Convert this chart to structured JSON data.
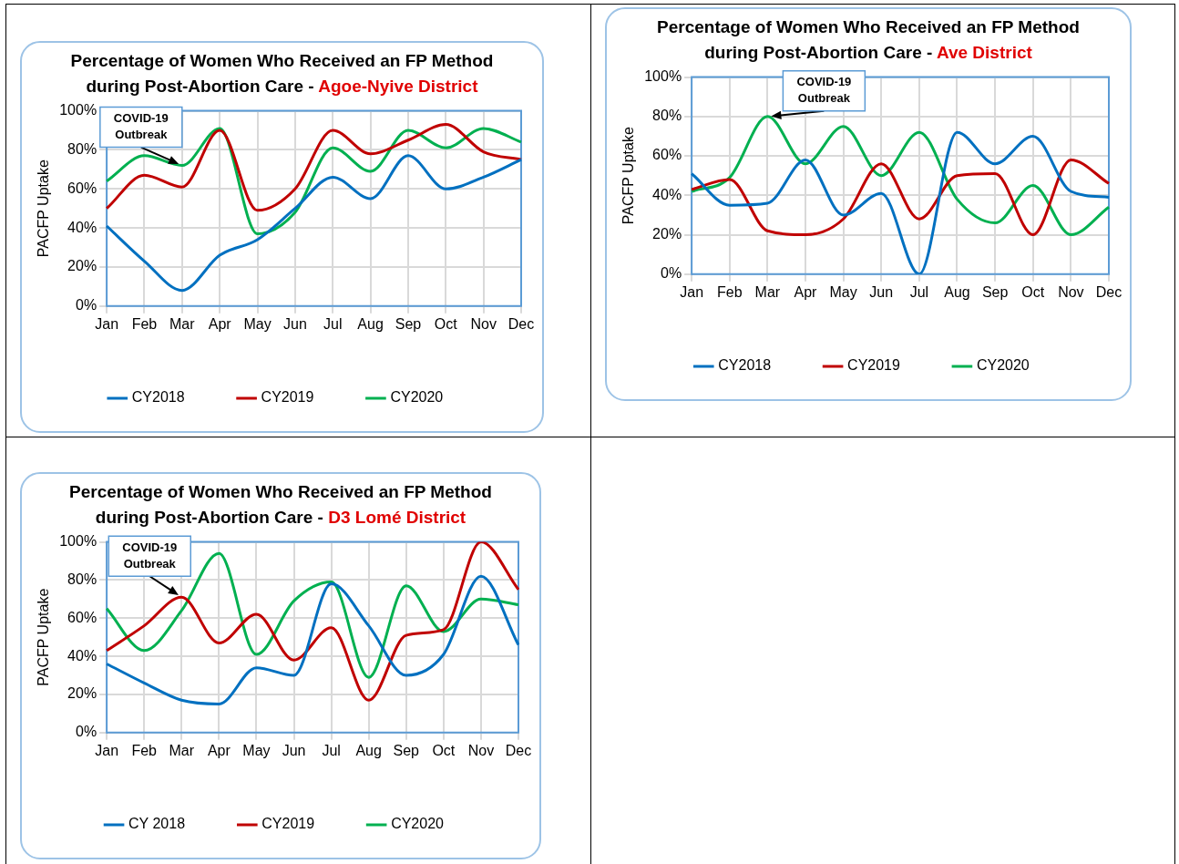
{
  "chart_data": [
    {
      "type": "line",
      "title": "Percentage of Women Who Received an FP Method during Post-Abortion Care - Agoe-Nyive District",
      "ylabel": "PACFP Uptake",
      "categories": [
        "Jan",
        "Feb",
        "Mar",
        "Apr",
        "May",
        "Jun",
        "Jul",
        "Aug",
        "Sep",
        "Oct",
        "Nov",
        "Dec"
      ],
      "series": [
        {
          "name": "CY2018",
          "color": "#0070c0",
          "values": [
            41,
            23,
            8,
            26,
            34,
            50,
            66,
            55,
            77,
            60,
            66,
            75
          ]
        },
        {
          "name": "CY2019",
          "color": "#c00000",
          "values": [
            50,
            67,
            61,
            90,
            49,
            60,
            90,
            78,
            85,
            93,
            79,
            75
          ]
        },
        {
          "name": "CY2020",
          "color": "#00b050",
          "values": [
            64,
            77,
            72,
            91,
            37,
            48,
            81,
            69,
            90,
            81,
            91,
            84
          ]
        }
      ],
      "ylim": [
        0,
        100
      ],
      "yticks": [
        {
          "value": 0,
          "label": "0%"
        },
        {
          "value": 20,
          "label": "20%"
        },
        {
          "value": 40,
          "label": "40%"
        },
        {
          "value": 60,
          "label": "60%"
        },
        {
          "value": 80,
          "label": "80%"
        },
        {
          "value": 100,
          "label": "100%"
        }
      ],
      "grid": true,
      "legend": "bottom",
      "annotations": [
        {
          "text": "COVID-19 Outbreak",
          "x": "Mar",
          "y": 72
        }
      ]
    },
    {
      "type": "line",
      "title": "Percentage of Women Who Received an FP Method during Post-Abortion Care - Ave District",
      "ylabel": "PACFP Uptake",
      "categories": [
        "Jan",
        "Feb",
        "Mar",
        "Apr",
        "May",
        "Jun",
        "Jul",
        "Aug",
        "Sep",
        "Oct",
        "Nov",
        "Dec"
      ],
      "series": [
        {
          "name": "CY2018",
          "color": "#0070c0",
          "values": [
            51,
            35,
            36,
            58,
            30,
            41,
            0,
            72,
            56,
            70,
            42,
            39
          ]
        },
        {
          "name": "CY2019",
          "color": "#c00000",
          "values": [
            43,
            48,
            22,
            20,
            28,
            56,
            28,
            50,
            51,
            20,
            58,
            46
          ]
        },
        {
          "name": "CY2020",
          "color": "#00b050",
          "values": [
            42,
            49,
            80,
            56,
            75,
            50,
            72,
            38,
            26,
            45,
            20,
            34
          ]
        }
      ],
      "ylim": [
        0,
        100
      ],
      "yticks": [
        {
          "value": 0,
          "label": "0%"
        },
        {
          "value": 20,
          "label": "20%"
        },
        {
          "value": 40,
          "label": "40%"
        },
        {
          "value": 60,
          "label": "60%"
        },
        {
          "value": 80,
          "label": "80%"
        },
        {
          "value": 100,
          "label": "100%"
        }
      ],
      "grid": true,
      "legend": "bottom",
      "annotations": [
        {
          "text": "COVID-19 Outbreak",
          "x": "Mar",
          "y": 80
        }
      ]
    },
    {
      "type": "line",
      "title": "Percentage of Women Who Received an FP Method during Post-Abortion Care - D3 Lomé District",
      "ylabel": "PACFP Uptake",
      "categories": [
        "Jan",
        "Feb",
        "Mar",
        "Apr",
        "May",
        "Jun",
        "Jul",
        "Aug",
        "Sep",
        "Oct",
        "Nov",
        "Dec"
      ],
      "series": [
        {
          "name": "CY 2018",
          "color": "#0070c0",
          "values": [
            36,
            26,
            17,
            15,
            34,
            30,
            78,
            56,
            30,
            41,
            82,
            46
          ]
        },
        {
          "name": "CY2019",
          "color": "#c00000",
          "values": [
            43,
            56,
            71,
            47,
            62,
            38,
            55,
            17,
            51,
            54,
            100,
            75
          ]
        },
        {
          "name": "CY2020",
          "color": "#00b050",
          "values": [
            65,
            43,
            64,
            94,
            41,
            69,
            79,
            29,
            77,
            53,
            70,
            67
          ]
        }
      ],
      "ylim": [
        0,
        100
      ],
      "yticks": [
        {
          "value": 0,
          "label": "0%"
        },
        {
          "value": 20,
          "label": "20%"
        },
        {
          "value": 40,
          "label": "40%"
        },
        {
          "value": 60,
          "label": "60%"
        },
        {
          "value": 80,
          "label": "80%"
        },
        {
          "value": 100,
          "label": "100%"
        }
      ],
      "grid": true,
      "legend": "bottom",
      "annotations": [
        {
          "text": "COVID-19 Outbreak",
          "x": "Mar",
          "y": 71
        }
      ]
    }
  ]
}
